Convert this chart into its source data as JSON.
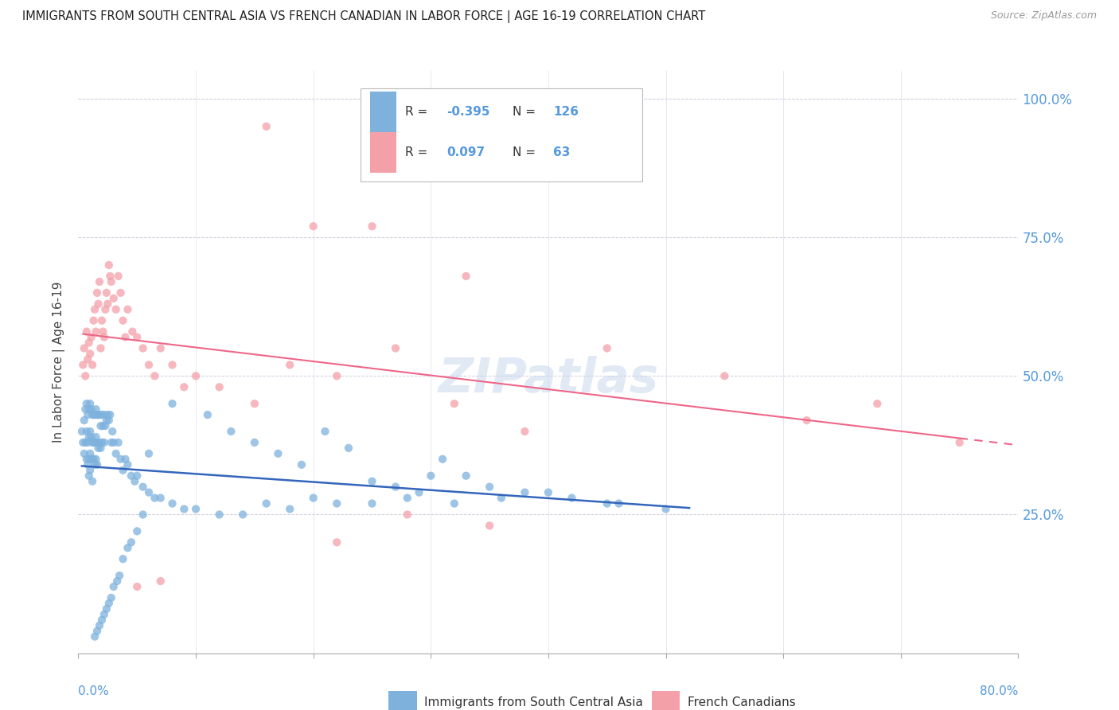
{
  "title": "IMMIGRANTS FROM SOUTH CENTRAL ASIA VS FRENCH CANADIAN IN LABOR FORCE | AGE 16-19 CORRELATION CHART",
  "source_text": "Source: ZipAtlas.com",
  "ylabel": "In Labor Force | Age 16-19",
  "ytick_labels": [
    "100.0%",
    "75.0%",
    "50.0%",
    "25.0%"
  ],
  "ytick_values": [
    1.0,
    0.75,
    0.5,
    0.25
  ],
  "xlim": [
    0.0,
    0.8
  ],
  "ylim": [
    0.0,
    1.05
  ],
  "blue_color": "#7EB2DD",
  "pink_color": "#F4A0A8",
  "trend_blue": "#3366BB",
  "trend_pink": "#EE6688",
  "legend_R_blue": "-0.395",
  "legend_N_blue": "126",
  "legend_R_pink": "0.097",
  "legend_N_pink": "63",
  "legend_label_blue": "Immigrants from South Central Asia",
  "legend_label_pink": "French Canadians",
  "watermark": "ZIPatlas",
  "blue_scatter_x": [
    0.003,
    0.004,
    0.005,
    0.005,
    0.006,
    0.006,
    0.007,
    0.007,
    0.007,
    0.008,
    0.008,
    0.008,
    0.009,
    0.009,
    0.009,
    0.009,
    0.01,
    0.01,
    0.01,
    0.01,
    0.011,
    0.011,
    0.011,
    0.012,
    0.012,
    0.012,
    0.012,
    0.013,
    0.013,
    0.013,
    0.014,
    0.014,
    0.014,
    0.015,
    0.015,
    0.015,
    0.016,
    0.016,
    0.016,
    0.017,
    0.017,
    0.018,
    0.018,
    0.019,
    0.019,
    0.02,
    0.02,
    0.021,
    0.022,
    0.022,
    0.023,
    0.024,
    0.025,
    0.026,
    0.027,
    0.028,
    0.029,
    0.03,
    0.032,
    0.034,
    0.036,
    0.038,
    0.04,
    0.042,
    0.045,
    0.048,
    0.05,
    0.055,
    0.06,
    0.065,
    0.07,
    0.08,
    0.09,
    0.1,
    0.12,
    0.14,
    0.16,
    0.18,
    0.2,
    0.22,
    0.25,
    0.28,
    0.32,
    0.36,
    0.4,
    0.45,
    0.5,
    0.3,
    0.35,
    0.38,
    0.42,
    0.46,
    0.25,
    0.27,
    0.29,
    0.31,
    0.33,
    0.15,
    0.17,
    0.19,
    0.21,
    0.23,
    0.11,
    0.13,
    0.08,
    0.06,
    0.055,
    0.05,
    0.045,
    0.042,
    0.038,
    0.035,
    0.033,
    0.03,
    0.028,
    0.026,
    0.024,
    0.022,
    0.02,
    0.018,
    0.016,
    0.014
  ],
  "blue_scatter_y": [
    0.4,
    0.38,
    0.42,
    0.36,
    0.44,
    0.38,
    0.45,
    0.4,
    0.35,
    0.43,
    0.38,
    0.34,
    0.44,
    0.39,
    0.35,
    0.32,
    0.45,
    0.4,
    0.36,
    0.33,
    0.44,
    0.39,
    0.35,
    0.43,
    0.38,
    0.35,
    0.31,
    0.43,
    0.38,
    0.35,
    0.43,
    0.38,
    0.34,
    0.44,
    0.39,
    0.35,
    0.43,
    0.38,
    0.34,
    0.43,
    0.37,
    0.43,
    0.38,
    0.41,
    0.37,
    0.43,
    0.38,
    0.41,
    0.43,
    0.38,
    0.41,
    0.42,
    0.43,
    0.42,
    0.43,
    0.38,
    0.4,
    0.38,
    0.36,
    0.38,
    0.35,
    0.33,
    0.35,
    0.34,
    0.32,
    0.31,
    0.32,
    0.3,
    0.29,
    0.28,
    0.28,
    0.27,
    0.26,
    0.26,
    0.25,
    0.25,
    0.27,
    0.26,
    0.28,
    0.27,
    0.27,
    0.28,
    0.27,
    0.28,
    0.29,
    0.27,
    0.26,
    0.32,
    0.3,
    0.29,
    0.28,
    0.27,
    0.31,
    0.3,
    0.29,
    0.35,
    0.32,
    0.38,
    0.36,
    0.34,
    0.4,
    0.37,
    0.43,
    0.4,
    0.45,
    0.36,
    0.25,
    0.22,
    0.2,
    0.19,
    0.17,
    0.14,
    0.13,
    0.12,
    0.1,
    0.09,
    0.08,
    0.07,
    0.06,
    0.05,
    0.04,
    0.03
  ],
  "pink_scatter_x": [
    0.004,
    0.005,
    0.006,
    0.007,
    0.008,
    0.009,
    0.01,
    0.011,
    0.012,
    0.013,
    0.014,
    0.015,
    0.016,
    0.017,
    0.018,
    0.019,
    0.02,
    0.021,
    0.022,
    0.023,
    0.024,
    0.025,
    0.026,
    0.027,
    0.028,
    0.03,
    0.032,
    0.034,
    0.036,
    0.038,
    0.04,
    0.042,
    0.046,
    0.05,
    0.055,
    0.06,
    0.065,
    0.07,
    0.08,
    0.09,
    0.1,
    0.12,
    0.15,
    0.18,
    0.22,
    0.27,
    0.32,
    0.38,
    0.45,
    0.55,
    0.62,
    0.68,
    0.75,
    0.28,
    0.35,
    0.22,
    0.16,
    0.2,
    0.25,
    0.33,
    0.05,
    0.07
  ],
  "pink_scatter_y": [
    0.52,
    0.55,
    0.5,
    0.58,
    0.53,
    0.56,
    0.54,
    0.57,
    0.52,
    0.6,
    0.62,
    0.58,
    0.65,
    0.63,
    0.67,
    0.55,
    0.6,
    0.58,
    0.57,
    0.62,
    0.65,
    0.63,
    0.7,
    0.68,
    0.67,
    0.64,
    0.62,
    0.68,
    0.65,
    0.6,
    0.57,
    0.62,
    0.58,
    0.57,
    0.55,
    0.52,
    0.5,
    0.55,
    0.52,
    0.48,
    0.5,
    0.48,
    0.45,
    0.52,
    0.5,
    0.55,
    0.45,
    0.4,
    0.55,
    0.5,
    0.42,
    0.45,
    0.38,
    0.25,
    0.23,
    0.2,
    0.95,
    0.77,
    0.77,
    0.68,
    0.12,
    0.13
  ]
}
